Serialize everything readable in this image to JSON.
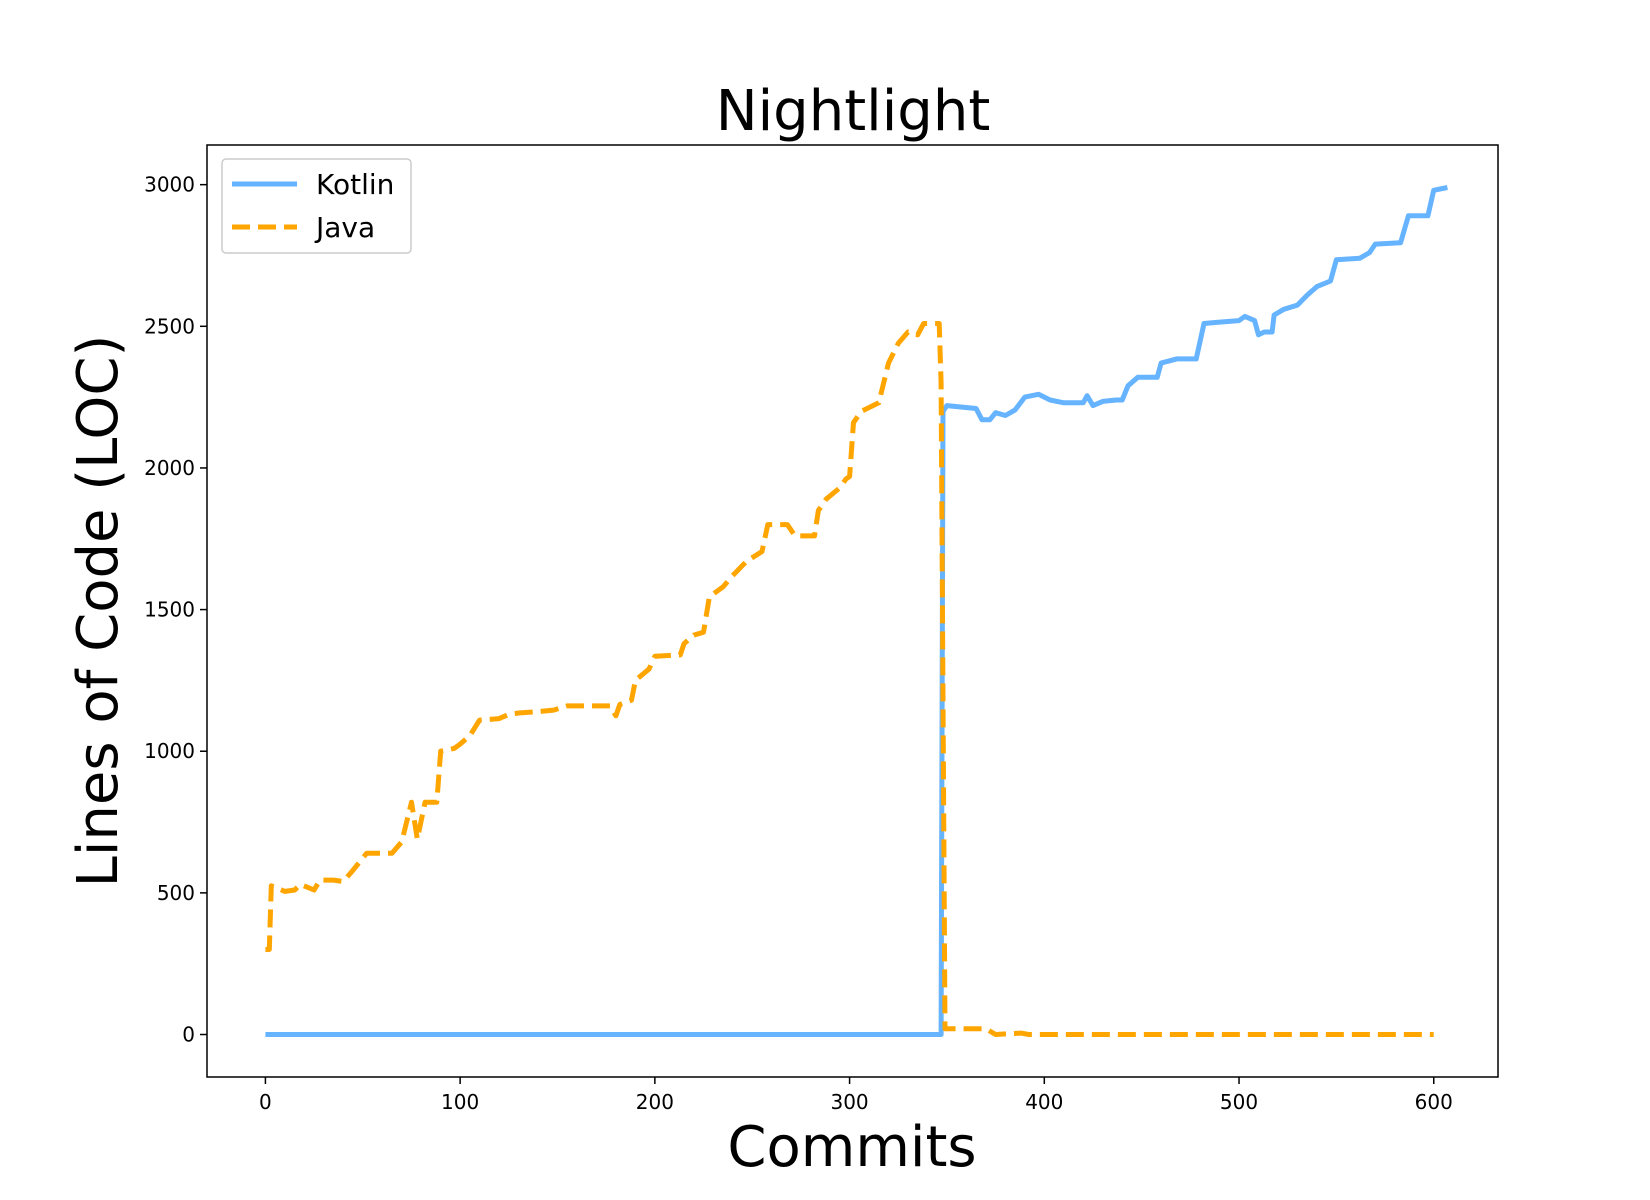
{
  "chart_data": {
    "type": "line",
    "title": "Nightlight",
    "xlabel": "Commits",
    "ylabel": "Lines of Code (LOC)",
    "xlim": [
      -30,
      633
    ],
    "ylim": [
      -150,
      3140
    ],
    "xticks": [
      0,
      100,
      200,
      300,
      400,
      500,
      600
    ],
    "yticks": [
      0,
      500,
      1000,
      1500,
      2000,
      2500,
      3000
    ],
    "grid": false,
    "legend_position": "upper left",
    "series": [
      {
        "name": "Kotlin",
        "color": "#66b3ff",
        "style": "solid",
        "points": [
          [
            0,
            0
          ],
          [
            347,
            0
          ],
          [
            348,
            2200
          ],
          [
            350,
            2220
          ],
          [
            365,
            2210
          ],
          [
            368,
            2170
          ],
          [
            372,
            2170
          ],
          [
            375,
            2195
          ],
          [
            380,
            2185
          ],
          [
            385,
            2205
          ],
          [
            390,
            2250
          ],
          [
            397,
            2260
          ],
          [
            403,
            2240
          ],
          [
            410,
            2230
          ],
          [
            420,
            2230
          ],
          [
            422,
            2255
          ],
          [
            425,
            2220
          ],
          [
            430,
            2235
          ],
          [
            437,
            2240
          ],
          [
            440,
            2240
          ],
          [
            443,
            2290
          ],
          [
            448,
            2320
          ],
          [
            458,
            2320
          ],
          [
            460,
            2370
          ],
          [
            468,
            2385
          ],
          [
            478,
            2385
          ],
          [
            482,
            2510
          ],
          [
            490,
            2515
          ],
          [
            500,
            2520
          ],
          [
            503,
            2535
          ],
          [
            508,
            2520
          ],
          [
            510,
            2470
          ],
          [
            513,
            2480
          ],
          [
            517,
            2480
          ],
          [
            518,
            2540
          ],
          [
            523,
            2560
          ],
          [
            530,
            2575
          ],
          [
            535,
            2610
          ],
          [
            540,
            2640
          ],
          [
            547,
            2660
          ],
          [
            550,
            2735
          ],
          [
            562,
            2740
          ],
          [
            567,
            2760
          ],
          [
            570,
            2790
          ],
          [
            583,
            2795
          ],
          [
            587,
            2890
          ],
          [
            597,
            2890
          ],
          [
            600,
            2980
          ],
          [
            607,
            2990
          ]
        ]
      },
      {
        "name": "Java",
        "color": "#ffa500",
        "style": "dashed",
        "points": [
          [
            0,
            300
          ],
          [
            2,
            300
          ],
          [
            3,
            525
          ],
          [
            10,
            505
          ],
          [
            15,
            510
          ],
          [
            18,
            530
          ],
          [
            25,
            510
          ],
          [
            28,
            545
          ],
          [
            35,
            545
          ],
          [
            40,
            540
          ],
          [
            45,
            580
          ],
          [
            52,
            640
          ],
          [
            65,
            640
          ],
          [
            70,
            680
          ],
          [
            75,
            820
          ],
          [
            78,
            690
          ],
          [
            82,
            820
          ],
          [
            88,
            820
          ],
          [
            90,
            1000
          ],
          [
            97,
            1010
          ],
          [
            100,
            1025
          ],
          [
            105,
            1055
          ],
          [
            110,
            1110
          ],
          [
            120,
            1115
          ],
          [
            125,
            1130
          ],
          [
            130,
            1135
          ],
          [
            140,
            1140
          ],
          [
            148,
            1145
          ],
          [
            155,
            1160
          ],
          [
            165,
            1160
          ],
          [
            177,
            1160
          ],
          [
            180,
            1125
          ],
          [
            182,
            1165
          ],
          [
            188,
            1180
          ],
          [
            190,
            1250
          ],
          [
            197,
            1290
          ],
          [
            200,
            1335
          ],
          [
            213,
            1340
          ],
          [
            215,
            1380
          ],
          [
            220,
            1410
          ],
          [
            225,
            1420
          ],
          [
            228,
            1545
          ],
          [
            235,
            1580
          ],
          [
            240,
            1620
          ],
          [
            247,
            1670
          ],
          [
            255,
            1705
          ],
          [
            258,
            1800
          ],
          [
            268,
            1800
          ],
          [
            272,
            1760
          ],
          [
            282,
            1760
          ],
          [
            284,
            1850
          ],
          [
            288,
            1890
          ],
          [
            295,
            1930
          ],
          [
            298,
            1960
          ],
          [
            300,
            1970
          ],
          [
            302,
            2160
          ],
          [
            306,
            2200
          ],
          [
            315,
            2230
          ],
          [
            320,
            2370
          ],
          [
            325,
            2440
          ],
          [
            330,
            2480
          ],
          [
            335,
            2470
          ],
          [
            338,
            2510
          ],
          [
            346,
            2510
          ],
          [
            347,
            2300
          ],
          [
            349,
            20
          ],
          [
            370,
            20
          ],
          [
            375,
            0
          ],
          [
            388,
            5
          ],
          [
            392,
            0
          ],
          [
            600,
            0
          ]
        ]
      }
    ]
  }
}
